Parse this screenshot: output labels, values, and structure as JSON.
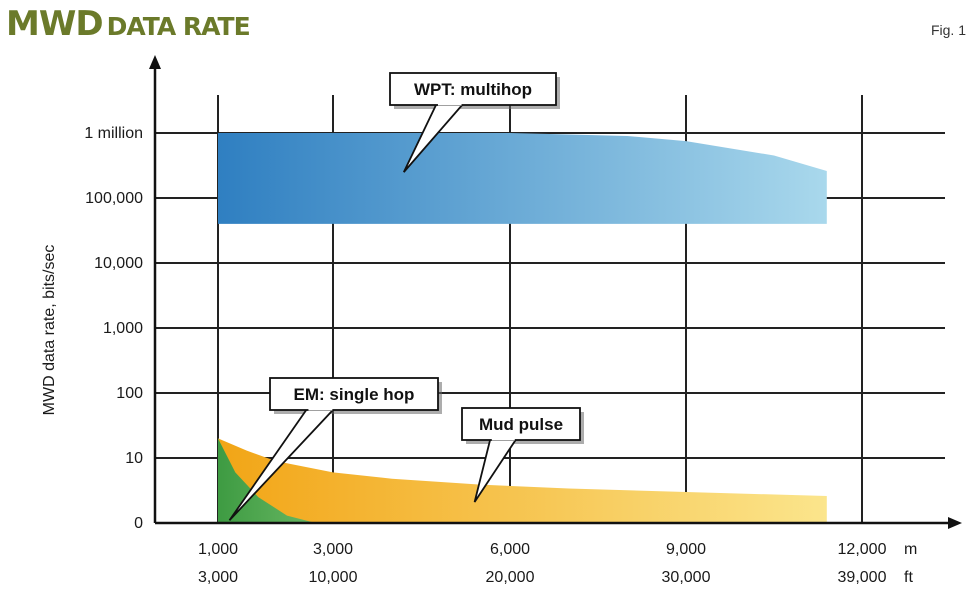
{
  "chart_data": {
    "type": "area",
    "title_main": "MWD",
    "title_rest": "DATA RATE",
    "fig_label": "Fig. 1",
    "ylabel": "MWD data rate, bits/sec",
    "y_scale": "log",
    "y_ticks": [
      {
        "value": 0,
        "label": "0"
      },
      {
        "value": 10,
        "label": "10"
      },
      {
        "value": 100,
        "label": "100"
      },
      {
        "value": 1000,
        "label": "1,000"
      },
      {
        "value": 10000,
        "label": "10,000"
      },
      {
        "value": 100000,
        "label": "100,000"
      },
      {
        "value": 1000000,
        "label": "1 million"
      }
    ],
    "x_ticks": [
      {
        "m": 1000,
        "m_label": "1,000",
        "ft_label": "3,000"
      },
      {
        "m": 3000,
        "m_label": "3,000",
        "ft_label": "10,000"
      },
      {
        "m": 6000,
        "m_label": "6,000",
        "ft_label": "20,000"
      },
      {
        "m": 9000,
        "m_label": "9,000",
        "ft_label": "30,000"
      },
      {
        "m": 12000,
        "m_label": "12,000",
        "ft_label": "39,000"
      }
    ],
    "x_unit_m": "m",
    "x_unit_ft": "ft",
    "grid": true,
    "series": [
      {
        "name": "WPT: multihop",
        "color_start": "#2f7fc1",
        "color_end": "#a9d8ec",
        "x": [
          1000,
          3000,
          6000,
          8000,
          9000,
          10500,
          11400
        ],
        "upper": [
          1000000,
          1000000,
          1000000,
          900000,
          750000,
          450000,
          260000
        ],
        "lower": [
          40000,
          40000,
          40000,
          40000,
          40000,
          40000,
          40000
        ]
      },
      {
        "name": "Mud pulse",
        "color_start": "#f2a516",
        "color_end": "#fbe58c",
        "x": [
          1000,
          1500,
          2000,
          3000,
          4000,
          5500,
          7000,
          9000,
          11400
        ],
        "upper": [
          20,
          13,
          9,
          6,
          4.8,
          3.9,
          3.4,
          3.0,
          2.6
        ],
        "lower": [
          0.4,
          0.4,
          0.4,
          0.4,
          0.4,
          0.4,
          0.4,
          0.4,
          0.4
        ]
      },
      {
        "name": "EM: single hop",
        "color_start": "#2e9a46",
        "color_end": "#5cb868",
        "x": [
          1000,
          1300,
          1700,
          2200,
          2700
        ],
        "upper": [
          20,
          6,
          2.5,
          1.3,
          0.8
        ],
        "lower": [
          0.4,
          0.4,
          0.4,
          0.4,
          0.4
        ]
      }
    ],
    "callouts": [
      {
        "label": "WPT: multihop",
        "target_x": 4200,
        "target_y": 250000
      },
      {
        "label": "EM: single hop",
        "target_x": 1200,
        "target_y": 1.1
      },
      {
        "label": "Mud pulse",
        "target_x": 5400,
        "target_y": 2.1
      }
    ]
  }
}
